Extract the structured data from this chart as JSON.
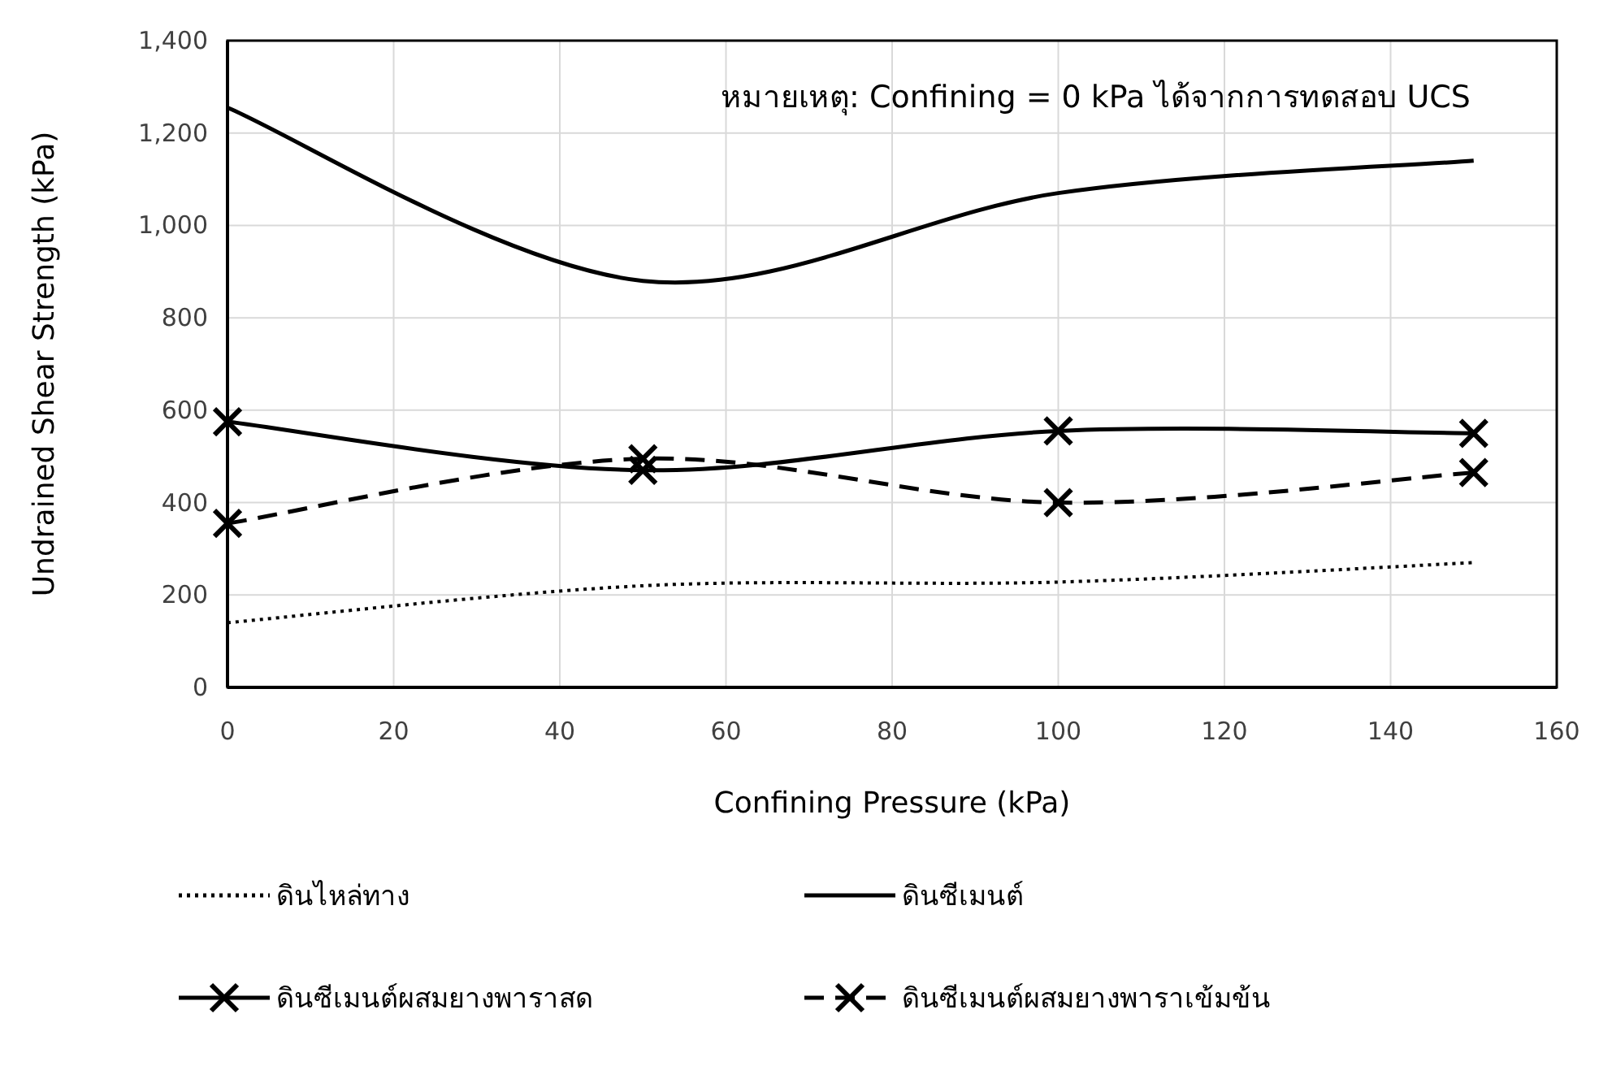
{
  "chart_data": {
    "type": "line",
    "xlabel": "Confining Pressure (kPa)",
    "ylabel": "Undrained Shear Strength (kPa)",
    "annotations": [
      "หมายเหตุ: Confining = 0 kPa ได้จากการทดสอบ UCS"
    ],
    "x": [
      0,
      50,
      100,
      150
    ],
    "series": [
      {
        "name": "ดินไหล่ทาง",
        "color": "#000000",
        "values": [
          140,
          220,
          228,
          270
        ],
        "line_style": "dotted",
        "marker": "none"
      },
      {
        "name": "ดินซีเมนต์",
        "color": "#000000",
        "values": [
          1255,
          880,
          1070,
          1140
        ],
        "line_style": "solid",
        "marker": "none"
      },
      {
        "name": "ดินซีเมนต์ผสมยางพาราสด",
        "color": "#000000",
        "values": [
          575,
          470,
          555,
          550
        ],
        "line_style": "solid",
        "marker": "cross"
      },
      {
        "name": "ดินซีเมนต์ผสมยางพาราเข้มข้น",
        "color": "#000000",
        "values": [
          355,
          495,
          400,
          465
        ],
        "line_style": "dashed",
        "marker": "cross"
      }
    ],
    "xlim": [
      0,
      160
    ],
    "xticks": [
      0,
      20,
      40,
      60,
      80,
      100,
      120,
      140,
      160
    ],
    "ylim": [
      0,
      1400
    ],
    "yticks": [
      0,
      200,
      400,
      600,
      800,
      {
        "value": 1000,
        "label": "1,000"
      },
      {
        "value": 1200,
        "label": "1,200"
      },
      {
        "value": 1400,
        "label": "1,400"
      }
    ],
    "grid": true,
    "legend": "bottom"
  }
}
